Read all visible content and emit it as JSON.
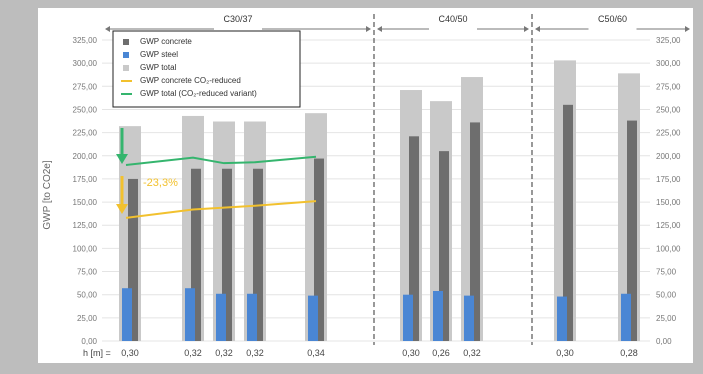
{
  "chart_data": {
    "type": "bar",
    "ylabel": "GWP [to CO2e]",
    "ylim": [
      0,
      325
    ],
    "yticks": [
      "0,00",
      "25,00",
      "50,00",
      "75,00",
      "100,00",
      "125,00",
      "150,00",
      "175,00",
      "200,00",
      "225,00",
      "250,00",
      "275,00",
      "300,00",
      "325,00"
    ],
    "xlabel_prefix": "h [m] =",
    "groups": [
      {
        "name": "C30/37",
        "categories": [
          "0,30",
          "0,32",
          "0,32",
          "0,32",
          "0,34"
        ]
      },
      {
        "name": "C40/50",
        "categories": [
          "0,30",
          "0,26",
          "0,32"
        ]
      },
      {
        "name": "C50/60",
        "categories": [
          "0,30",
          "0,28"
        ]
      }
    ],
    "series": [
      {
        "name": "GWP concrete",
        "color": "#6e6e6e",
        "values": [
          175,
          186,
          186,
          186,
          197,
          221,
          205,
          236,
          255,
          238
        ]
      },
      {
        "name": "GWP steel",
        "color": "#4a86d4",
        "values": [
          57,
          57,
          51,
          51,
          49,
          50,
          54,
          49,
          48,
          51
        ]
      },
      {
        "name": "GWP total",
        "color": "#c9c9c9",
        "values": [
          232,
          243,
          237,
          237,
          246,
          271,
          259,
          285,
          303,
          289
        ]
      }
    ],
    "lines": [
      {
        "name": "GWP concrete CO₂-reduced",
        "color": "#f2c12e",
        "values": [
          133,
          142,
          144,
          146,
          151
        ]
      },
      {
        "name": "GWP total (CO₂-reduced variant)",
        "color": "#35b56e",
        "values": [
          190,
          198,
          192,
          193,
          199
        ]
      }
    ],
    "annotation": {
      "text": "-23,3%",
      "color": "#f2c12e"
    },
    "legend_position": "top-left"
  }
}
